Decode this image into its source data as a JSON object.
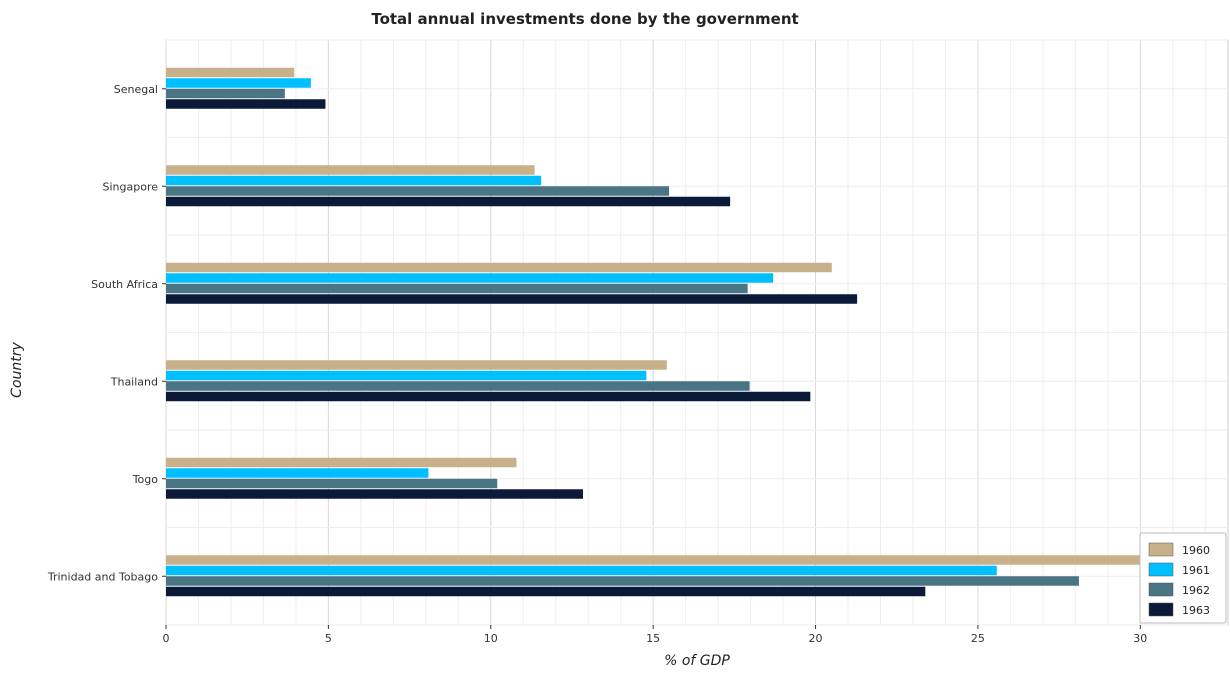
{
  "chart_data": {
    "type": "bar",
    "orientation": "horizontal",
    "title": "Total annual investments done by the government",
    "xlabel": "% of GDP",
    "ylabel": "Country",
    "xlim": [
      0,
      32.7
    ],
    "xticks": [
      0,
      5,
      10,
      15,
      20,
      25,
      30
    ],
    "grid": true,
    "legend_position": "bottom-right",
    "categories": [
      "Senegal",
      "Singapore",
      "South Africa",
      "Thailand",
      "Togo",
      "Trinidad and Tobago"
    ],
    "series": [
      {
        "name": "1960",
        "color": "#c8b08a",
        "values": [
          3.95,
          11.35,
          20.5,
          15.42,
          10.79,
          31.15
        ]
      },
      {
        "name": "1961",
        "color": "#00bfff",
        "values": [
          4.46,
          11.55,
          18.69,
          14.79,
          8.08,
          25.58
        ]
      },
      {
        "name": "1962",
        "color": "#4a7585",
        "values": [
          3.66,
          15.49,
          17.91,
          17.97,
          10.2,
          28.11
        ]
      },
      {
        "name": "1963",
        "color": "#0c1a3a",
        "values": [
          4.91,
          17.37,
          21.28,
          19.84,
          12.84,
          23.38
        ]
      }
    ]
  }
}
